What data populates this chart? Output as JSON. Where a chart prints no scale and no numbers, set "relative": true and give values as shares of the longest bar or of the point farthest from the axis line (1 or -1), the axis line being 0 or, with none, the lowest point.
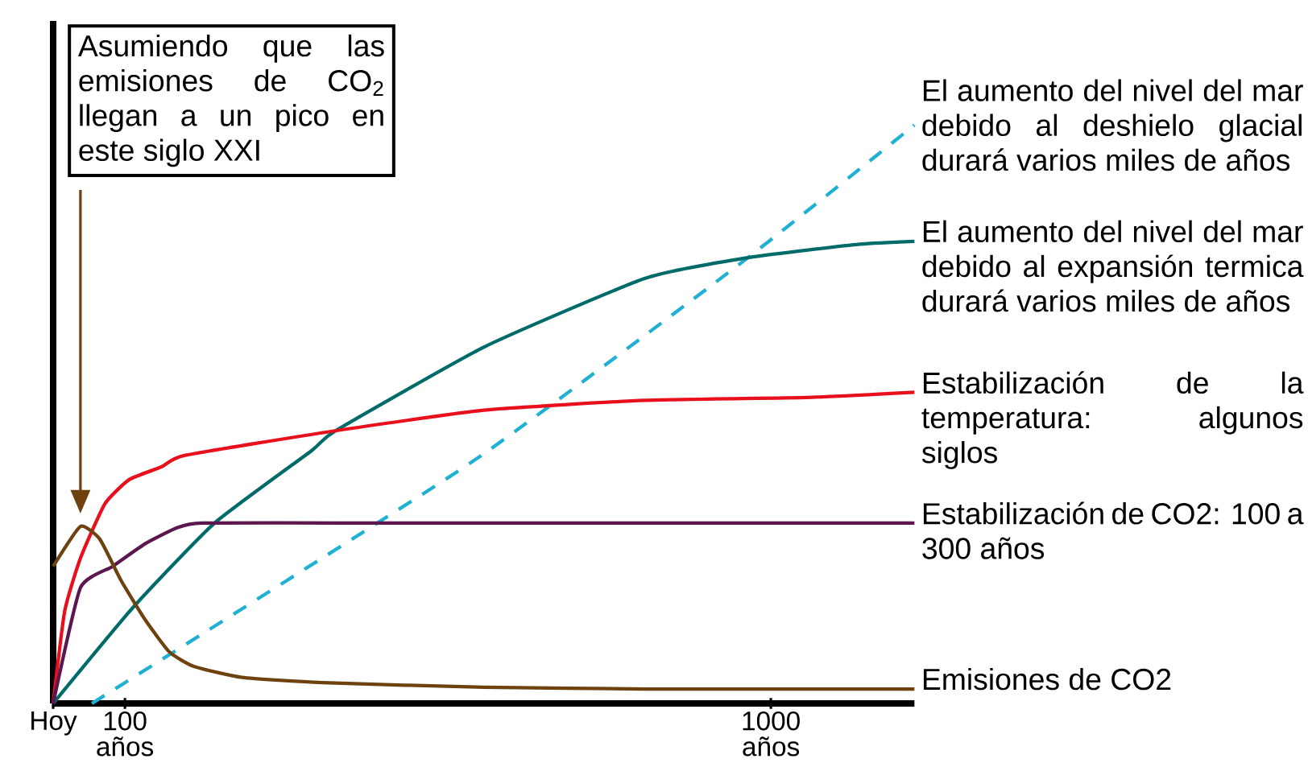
{
  "chart_data": {
    "type": "line",
    "relative": true,
    "marker": "none",
    "xlim": [
      0,
      1200
    ],
    "xticks": [
      {
        "value": 0,
        "label": "Hoy"
      },
      {
        "value": 100,
        "label": "100 años"
      },
      {
        "value": 1000,
        "label": "1000 años"
      }
    ],
    "annotations": [
      "Asumiendo que las emisiones de CO$_{2}$ llegan a un pico en este siglo XXI"
    ],
    "series": [
      {
        "name": "El aumento del nivel del mar debido al deshielo glacial durará varios miles de años",
        "color": "#1fb1d3",
        "line_style": "dashed",
        "x": [
          54,
          584,
          960,
          1200
        ],
        "values": [
          0,
          0.418,
          0.763,
          1
        ]
      },
      {
        "name": "El aumento del nivel del mar debido al expansión termica durará varios miles de años",
        "color": "#006b68",
        "line_style": "solid",
        "x": [
          0,
          112,
          225,
          360,
          393,
          600,
          825,
          975,
          1124,
          1200
        ],
        "values": [
          0,
          0.167,
          0.312,
          0.437,
          0.471,
          0.616,
          0.735,
          0.772,
          0.794,
          0.799
        ]
      },
      {
        "name": "Estabilización de la temperatura: algunos siglos",
        "color": "#e8101c",
        "line_style": "solid",
        "x": [
          0,
          16,
          38,
          72,
          106,
          151,
          184,
          391,
          600,
          825,
          1049,
          1200
        ],
        "values": [
          0,
          0.159,
          0.251,
          0.345,
          0.387,
          0.409,
          0.429,
          0.471,
          0.507,
          0.524,
          0.529,
          0.538
        ]
      },
      {
        "name": "Estabilización de CO2: 100 a 300 años",
        "color": "#5c1650",
        "line_style": "solid",
        "x": [
          0,
          38,
          83,
          128,
          173,
          207,
          400,
          800,
          1200
        ],
        "values": [
          0,
          0.2,
          0.237,
          0.276,
          0.304,
          0.312,
          0.312,
          0.312,
          0.312
        ]
      },
      {
        "name": "Emisiones de CO2",
        "color": "#6e420e",
        "line_style": "solid",
        "x": [
          0,
          38,
          65,
          94,
          128,
          162,
          196,
          263,
          375,
          600,
          825,
          1200
        ],
        "values": [
          0.237,
          0.306,
          0.284,
          0.214,
          0.145,
          0.089,
          0.064,
          0.045,
          0.036,
          0.028,
          0.025,
          0.025
        ]
      }
    ]
  }
}
